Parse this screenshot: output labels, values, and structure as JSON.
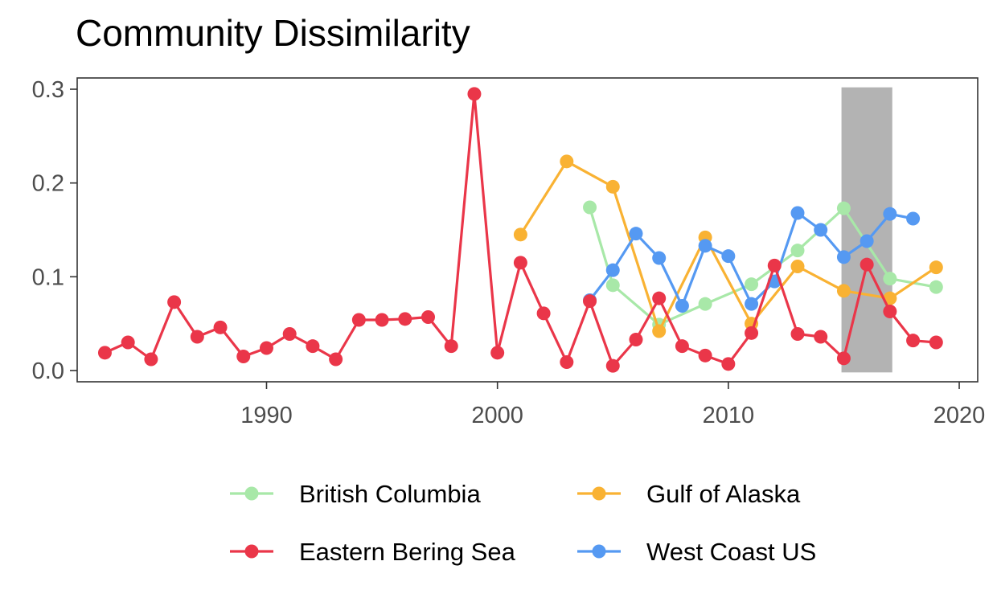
{
  "chart_data": {
    "type": "line",
    "title": "Community Dissimilarity",
    "xlabel": "",
    "ylabel": "",
    "xlim": [
      1981.8,
      2020.8
    ],
    "ylim": [
      -0.012,
      0.312
    ],
    "x_ticks": [
      1990,
      2000,
      2010,
      2020
    ],
    "y_ticks": [
      0.0,
      0.1,
      0.2,
      0.3
    ],
    "y_tick_labels": [
      "0.0",
      "0.1",
      "0.2",
      "0.3"
    ],
    "grid": false,
    "legend_position": "bottom",
    "highlight_band": {
      "x_start": 2014.9,
      "x_end": 2017.1,
      "y_top": 0.302,
      "color": "#b3b3b3"
    },
    "series": [
      {
        "name": "British Columbia",
        "color": "#a8e8a8",
        "x": [
          2004,
          2005,
          2007,
          2009,
          2011,
          2013,
          2015,
          2017,
          2019
        ],
        "y": [
          0.174,
          0.091,
          0.049,
          0.071,
          0.092,
          0.128,
          0.173,
          0.098,
          0.089
        ]
      },
      {
        "name": "Gulf of Alaska",
        "color": "#f9b233",
        "x": [
          2001,
          2003,
          2005,
          2007,
          2009,
          2011,
          2013,
          2015,
          2017,
          2019
        ],
        "y": [
          0.145,
          0.223,
          0.196,
          0.042,
          0.142,
          0.05,
          0.111,
          0.085,
          0.077,
          0.11
        ]
      },
      {
        "name": "West Coast US",
        "color": "#5599f2",
        "x": [
          2004,
          2005,
          2006,
          2007,
          2008,
          2009,
          2010,
          2011,
          2012,
          2013,
          2014,
          2015,
          2016,
          2017,
          2018
        ],
        "y": [
          0.075,
          0.107,
          0.146,
          0.12,
          0.069,
          0.133,
          0.122,
          0.071,
          0.095,
          0.168,
          0.15,
          0.121,
          0.138,
          0.167,
          0.162
        ]
      },
      {
        "name": "Eastern Bering Sea",
        "color": "#ea3649",
        "x": [
          1983,
          1984,
          1985,
          1986,
          1987,
          1988,
          1989,
          1990,
          1991,
          1992,
          1993,
          1994,
          1995,
          1996,
          1997,
          1998,
          1999,
          2000,
          2001,
          2002,
          2003,
          2004,
          2005,
          2006,
          2007,
          2008,
          2009,
          2010,
          2011,
          2012,
          2013,
          2014,
          2015,
          2016,
          2017,
          2018,
          2019
        ],
        "y": [
          0.019,
          0.03,
          0.012,
          0.073,
          0.036,
          0.046,
          0.015,
          0.024,
          0.039,
          0.026,
          0.012,
          0.054,
          0.054,
          0.055,
          0.057,
          0.026,
          0.295,
          0.019,
          0.115,
          0.061,
          0.009,
          0.074,
          0.005,
          0.033,
          0.077,
          0.026,
          0.016,
          0.007,
          0.04,
          0.112,
          0.039,
          0.036,
          0.013,
          0.113,
          0.063,
          0.032,
          0.03
        ]
      }
    ],
    "legend_order": [
      "British Columbia",
      "Gulf of Alaska",
      "Eastern Bering Sea",
      "West Coast US"
    ]
  }
}
